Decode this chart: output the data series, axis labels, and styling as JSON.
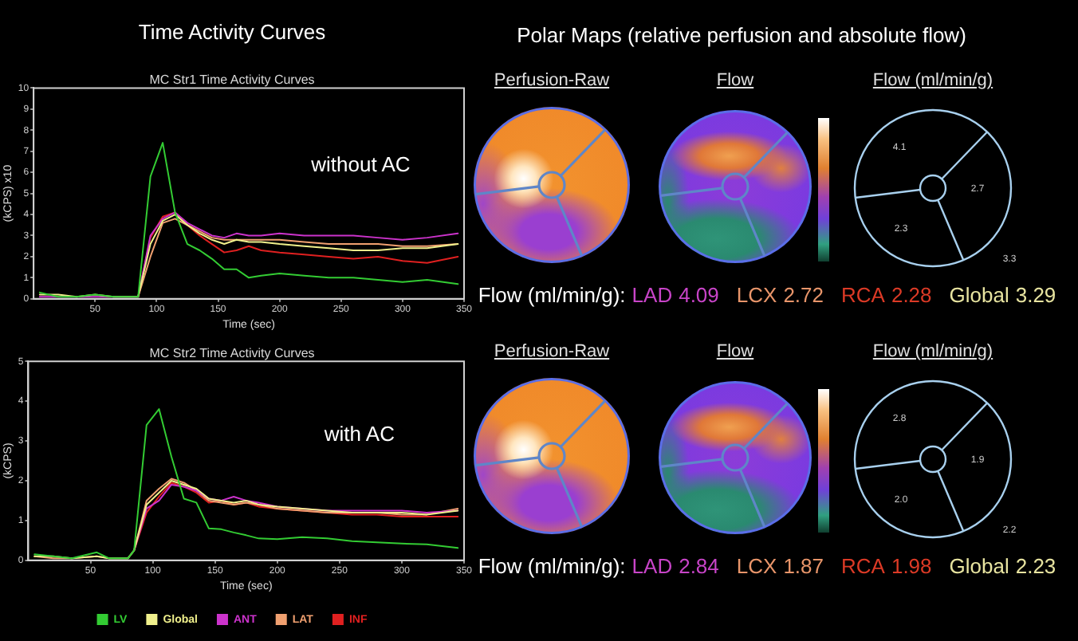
{
  "chart_data": [
    {
      "type": "line",
      "title": "Time Activity Curves",
      "subtitle": "MC Str1 Time Activity Curves",
      "xlabel": "Time (sec)",
      "ylabel": "(kCPS) x10",
      "x": [
        5,
        20,
        35,
        50,
        65,
        80,
        85,
        95,
        105,
        115,
        125,
        135,
        145,
        155,
        165,
        175,
        185,
        200,
        220,
        240,
        260,
        280,
        300,
        320,
        345
      ],
      "series": [
        {
          "color": "#33cc33",
          "values": [
            0.3,
            0.1,
            0.1,
            0.2,
            0.1,
            0.1,
            0.1,
            5.8,
            7.4,
            4.1,
            2.6,
            2.3,
            1.9,
            1.4,
            1.4,
            1.0,
            1.1,
            1.2,
            1.1,
            1.0,
            1.0,
            0.9,
            0.8,
            0.9,
            0.7
          ]
        },
        {
          "color": "#f0f08c",
          "values": [
            0.2,
            0.2,
            0.1,
            0.2,
            0.1,
            0.1,
            0.1,
            2.6,
            3.7,
            4.0,
            3.5,
            3.1,
            2.8,
            2.6,
            2.8,
            2.7,
            2.7,
            2.6,
            2.5,
            2.4,
            2.3,
            2.3,
            2.4,
            2.4,
            2.6
          ]
        },
        {
          "color": "#cc33cc",
          "values": [
            0.1,
            0.1,
            0.1,
            0.1,
            0.1,
            0.1,
            0.1,
            3.0,
            3.8,
            4.1,
            3.6,
            3.3,
            3.0,
            2.9,
            3.1,
            3.0,
            3.0,
            3.1,
            3.0,
            3.0,
            3.0,
            2.9,
            2.8,
            2.9,
            3.1
          ]
        },
        {
          "color": "#f0a070",
          "values": [
            null,
            null,
            null,
            null,
            null,
            null,
            0.1,
            2.0,
            3.6,
            3.8,
            3.5,
            3.2,
            2.9,
            2.8,
            2.8,
            2.8,
            2.8,
            2.8,
            2.7,
            2.6,
            2.6,
            2.6,
            2.5,
            2.5,
            2.6
          ]
        },
        {
          "color": "#e02020",
          "values": [
            null,
            null,
            null,
            null,
            null,
            null,
            0.1,
            2.9,
            3.9,
            4.1,
            3.5,
            3.0,
            2.6,
            2.2,
            2.3,
            2.5,
            2.3,
            2.2,
            2.1,
            2.0,
            1.9,
            2.0,
            1.8,
            1.7,
            2.0
          ]
        }
      ],
      "xlim": [
        0,
        350
      ],
      "xticks": [
        50,
        100,
        150,
        200,
        250,
        300,
        350
      ],
      "ylim": [
        0,
        10
      ],
      "yticks": [
        0,
        1,
        2,
        3,
        4,
        5,
        6,
        7,
        8,
        9,
        10
      ],
      "annotations": [
        "without AC"
      ]
    },
    {
      "type": "line",
      "title": "MC Str2 Time Activity Curves",
      "xlabel": "Time (sec)",
      "ylabel": "(kCPS)",
      "x": [
        5,
        20,
        35,
        55,
        65,
        80,
        85,
        95,
        105,
        115,
        125,
        135,
        145,
        155,
        165,
        175,
        185,
        200,
        220,
        240,
        260,
        280,
        300,
        320,
        345
      ],
      "series": [
        {
          "name": "LV",
          "color": "#33cc33",
          "values": [
            0.15,
            0.1,
            0.05,
            0.2,
            0.05,
            0.05,
            0.25,
            3.4,
            3.8,
            2.6,
            1.55,
            1.45,
            0.8,
            0.78,
            0.7,
            0.63,
            0.55,
            0.53,
            0.58,
            0.55,
            0.48,
            0.45,
            0.42,
            0.4,
            0.31
          ]
        },
        {
          "name": "Global",
          "color": "#f0f08c",
          "values": [
            0.1,
            0.1,
            0.05,
            0.1,
            0.05,
            0.05,
            0.25,
            1.4,
            1.7,
            2.0,
            1.9,
            1.8,
            1.55,
            1.5,
            1.45,
            1.5,
            1.4,
            1.35,
            1.3,
            1.25,
            1.2,
            1.2,
            1.2,
            1.15,
            1.25
          ]
        },
        {
          "name": "ANT",
          "color": "#cc33cc",
          "values": [
            null,
            null,
            null,
            null,
            null,
            null,
            0.25,
            1.3,
            1.5,
            1.9,
            1.85,
            1.75,
            1.55,
            1.5,
            1.6,
            1.5,
            1.45,
            1.35,
            1.3,
            1.25,
            1.25,
            1.25,
            1.25,
            1.2,
            1.25
          ]
        },
        {
          "name": "LAT",
          "color": "#f0a070",
          "values": [
            0.1,
            0.05,
            0.05,
            0.1,
            0.05,
            0.05,
            0.25,
            1.5,
            1.8,
            2.05,
            1.95,
            1.75,
            1.5,
            1.45,
            1.4,
            1.45,
            1.4,
            1.3,
            1.25,
            1.2,
            1.2,
            1.2,
            1.15,
            1.15,
            1.3
          ]
        },
        {
          "name": "INF",
          "color": "#e02020",
          "values": [
            null,
            null,
            null,
            null,
            null,
            null,
            0.25,
            1.2,
            1.6,
            1.95,
            1.85,
            1.7,
            1.45,
            1.5,
            1.4,
            1.45,
            1.35,
            1.3,
            1.25,
            1.2,
            1.15,
            1.15,
            1.1,
            1.1,
            1.1
          ]
        }
      ],
      "xlim": [
        0,
        350
      ],
      "xticks": [
        50,
        100,
        150,
        200,
        250,
        300,
        350
      ],
      "ylim": [
        0,
        5
      ],
      "yticks": [
        0,
        1,
        2,
        3,
        4,
        5
      ],
      "legend": "bottom",
      "annotations": [
        "with AC"
      ]
    },
    {
      "type": "other",
      "title": "Polar Maps (relative perfusion and absolute flow)",
      "annotations": [
        "Perfusion-Raw",
        "Flow",
        "Flow (ml/min/g)",
        "4.1",
        "2.7",
        "2.3",
        "3.3"
      ],
      "xlabel": "Flow (ml/min/g):",
      "categories": [
        "LAD",
        "LCX",
        "RCA",
        "Global"
      ],
      "values": [
        4.09,
        2.72,
        2.28,
        3.29
      ],
      "colors": [
        "#c844c8",
        "#e8956a",
        "#dc3a26",
        "#e8e4a0"
      ],
      "data_labels": true
    },
    {
      "type": "other",
      "annotations": [
        "Perfusion-Raw",
        "Flow",
        "Flow (ml/min/g)",
        "2.8",
        "1.9",
        "2.0",
        "2.2"
      ],
      "xlabel": "Flow (ml/min/g):",
      "categories": [
        "LAD",
        "LCX",
        "RCA",
        "Global"
      ],
      "values": [
        2.84,
        1.87,
        1.98,
        2.23
      ],
      "colors": [
        "#c844c8",
        "#e8956a",
        "#dc3a26",
        "#e8e4a0"
      ],
      "data_labels": true
    }
  ]
}
